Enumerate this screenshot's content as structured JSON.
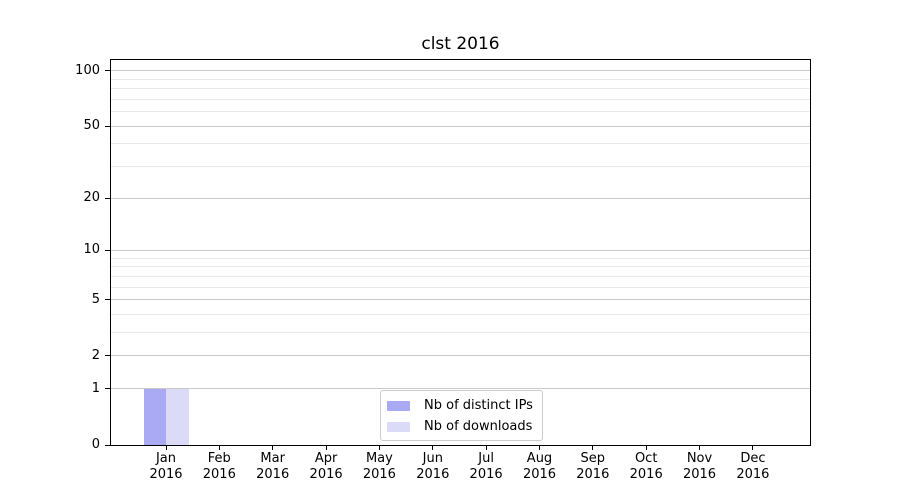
{
  "page": {
    "background": "#ffffff"
  },
  "chart_data": {
    "type": "bar",
    "title": "clst 2016",
    "categories": [
      "Jan 2016",
      "Feb 2016",
      "Mar 2016",
      "Apr 2016",
      "May 2016",
      "Jun 2016",
      "Jul 2016",
      "Aug 2016",
      "Sep 2016",
      "Oct 2016",
      "Nov 2016",
      "Dec 2016"
    ],
    "series": [
      {
        "name": "Nb of distinct IPs",
        "color": "#aaaaf4",
        "values": [
          1,
          0,
          0,
          0,
          0,
          0,
          0,
          0,
          0,
          0,
          0,
          0
        ]
      },
      {
        "name": "Nb of downloads",
        "color": "#dbdbf8",
        "values": [
          1,
          0,
          0,
          0,
          0,
          0,
          0,
          0,
          0,
          0,
          0,
          0
        ]
      }
    ],
    "xlabel": "",
    "ylabel": "",
    "y_scale": "log1p",
    "y_major_ticks": [
      0,
      1,
      2,
      5,
      10,
      20,
      50,
      100
    ],
    "y_minor_ticks": [
      3,
      4,
      6,
      7,
      8,
      9,
      30,
      40,
      60,
      70,
      80,
      90
    ],
    "ylim": [
      0,
      114
    ],
    "grid": "horizontal",
    "legend_position": "lower-center",
    "colors": {
      "major_grid": "#c9c9c9",
      "minor_grid": "#eaeaea",
      "spine": "#000000",
      "text": "#000000",
      "background": "#ffffff"
    }
  }
}
